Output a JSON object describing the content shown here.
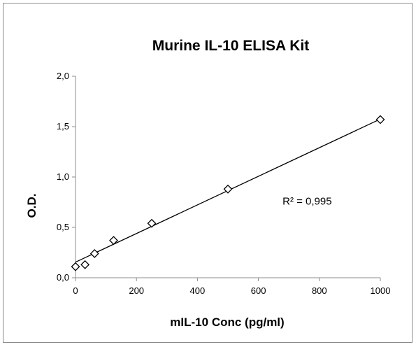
{
  "chart_data": {
    "type": "scatter",
    "title": "Murine IL-10 ELISA Kit",
    "xlabel": "mIL-10 Conc (pg/ml)",
    "ylabel": "O.D.",
    "xlim": [
      0,
      1000
    ],
    "ylim": [
      0,
      2.0
    ],
    "x_ticks": [
      0,
      200,
      400,
      600,
      800,
      1000
    ],
    "x_tick_labels": [
      "0",
      "200",
      "400",
      "600",
      "800",
      "1000"
    ],
    "y_ticks": [
      0,
      0.5,
      1.0,
      1.5,
      2.0
    ],
    "y_tick_labels": [
      "0,0",
      "0,5",
      "1,0",
      "1,5",
      "2,0"
    ],
    "grid": false,
    "legend": "none",
    "marker": "diamond-open",
    "series": [
      {
        "x": [
          0,
          31.25,
          62.5,
          125,
          250,
          500,
          1000
        ],
        "y": [
          0.11,
          0.13,
          0.24,
          0.37,
          0.54,
          0.88,
          1.57
        ]
      }
    ],
    "trendline": {
      "type": "linear",
      "x": [
        0,
        1000
      ],
      "y": [
        0.155,
        1.575
      ]
    },
    "annotations": [
      {
        "text": "R² = 0,995",
        "x": 760,
        "y": 0.76
      }
    ]
  }
}
